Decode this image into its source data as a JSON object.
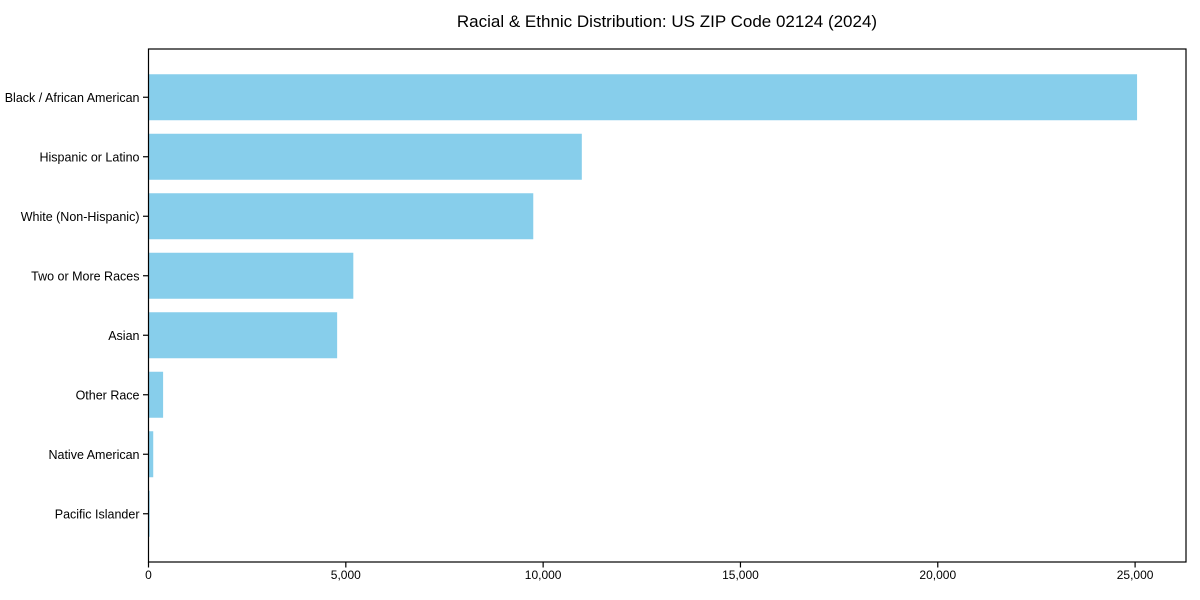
{
  "chart_data": {
    "type": "bar",
    "orientation": "horizontal",
    "title": "Racial & Ethnic Distribution: US ZIP Code 02124 (2024)",
    "categories": [
      "Black / African American",
      "Hispanic or Latino",
      "White (Non-Hispanic)",
      "Two or More Races",
      "Asian",
      "Other Race",
      "Native American",
      "Pacific Islander"
    ],
    "values": [
      25050,
      10980,
      9750,
      5190,
      4780,
      370,
      120,
      30
    ],
    "xlabel": "",
    "ylabel": "",
    "xlim": [
      0,
      26290
    ],
    "xticks": {
      "values": [
        0,
        5000,
        10000,
        15000,
        20000,
        25000
      ],
      "labels": [
        "0",
        "5,000",
        "10,000",
        "15,000",
        "20,000",
        "25,000"
      ]
    },
    "grid": false,
    "legend_position": "none",
    "bar_color": "#87CEEB",
    "background_color": "#ffffff",
    "axis_color": "#000000",
    "text_color": "#000000"
  }
}
